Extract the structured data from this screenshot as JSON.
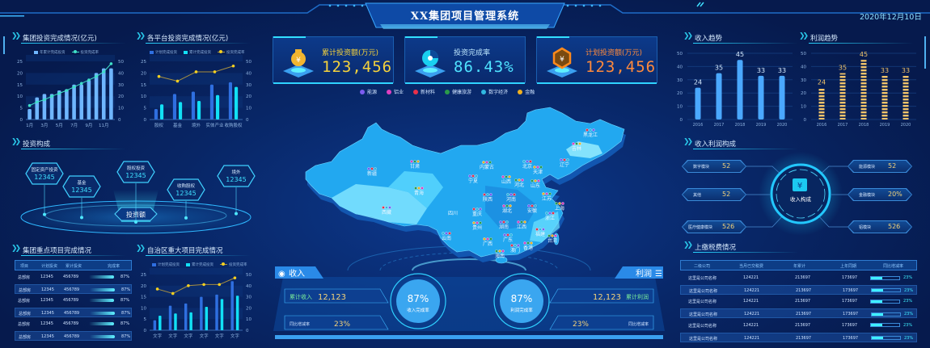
{
  "header": {
    "title": "XX集团项目管理系统",
    "date": "2020年12月10日"
  },
  "left": {
    "group_invest": {
      "title": "集团投资完成情况(亿元)",
      "legend": [
        "年累计完成投资",
        "投资完成率"
      ]
    },
    "platform_invest": {
      "title": "各平台投资完成情况(亿元)",
      "legend": [
        "计划完成投资",
        "累计完成投资",
        "投资完成率"
      ]
    },
    "composition": {
      "title": "投资构成",
      "center_label": "投资额",
      "nodes": [
        {
          "name": "固定资产投资",
          "value": "12345"
        },
        {
          "name": "基金",
          "value": "12345"
        },
        {
          "name": "股权投资",
          "value": "12345"
        },
        {
          "name": "收购股权",
          "value": "12345"
        },
        {
          "name": "境外",
          "value": "12345"
        }
      ]
    },
    "key_projects": {
      "title": "集团重点项目完成情况",
      "columns": [
        "项目",
        "计划投资",
        "累计投资",
        "完成率"
      ],
      "rows": [
        {
          "name": "总部房",
          "plan": "12345",
          "total": "456789",
          "rate": "87%",
          "progress": 0.87
        },
        {
          "name": "总部房",
          "plan": "12345",
          "total": "456789",
          "rate": "87%",
          "progress": 0.87
        },
        {
          "name": "总部房",
          "plan": "12345",
          "total": "456789",
          "rate": "87%",
          "progress": 0.87
        },
        {
          "name": "总部房",
          "plan": "12345",
          "total": "456789",
          "rate": "87%",
          "progress": 0.87
        },
        {
          "name": "总部房",
          "plan": "12345",
          "total": "456789",
          "rate": "87%",
          "progress": 0.87
        },
        {
          "name": "总部房",
          "plan": "12345",
          "total": "456789",
          "rate": "87%",
          "progress": 0.87
        }
      ]
    },
    "region_projects": {
      "title": "自治区重大项目完成情况",
      "legend": [
        "计划完成投资",
        "累计完成投资",
        "投资完成率"
      ]
    }
  },
  "center": {
    "kpis": [
      {
        "label": "累计投资额(万元)",
        "value": "123,456",
        "color": "#f5d23c",
        "icon": "money-bag-icon"
      },
      {
        "label": "投资完成率",
        "value": "86.43%",
        "color": "#4fe3ff",
        "icon": "pie-chart-icon"
      },
      {
        "label": "计划投资额(万元)",
        "value": "123,456",
        "color": "#ff8a3c",
        "icon": "yuan-hexagon-icon"
      }
    ],
    "categories": [
      {
        "label": "能源",
        "color": "#7b5cf0"
      },
      {
        "label": "铝业",
        "color": "#e040c0"
      },
      {
        "label": "新材料",
        "color": "#e8304a"
      },
      {
        "label": "健康旅游",
        "color": "#2a9a4a"
      },
      {
        "label": "数字经济",
        "color": "#30b8e0"
      },
      {
        "label": "金融",
        "color": "#f0b020"
      }
    ],
    "provinces": [
      "新疆",
      "甘肃",
      "西藏",
      "青海",
      "四川",
      "内蒙古",
      "宁夏",
      "山西",
      "陕西",
      "河北",
      "北京",
      "天津",
      "辽宁",
      "吉林",
      "黑龙江",
      "山东",
      "河南",
      "江苏",
      "安徽",
      "湖北",
      "重庆",
      "上海",
      "浙江",
      "贵州",
      "湖南",
      "江西",
      "福建",
      "台湾",
      "云南",
      "广西",
      "广东",
      "香港",
      "澳门",
      "海南"
    ],
    "income": {
      "title": "收入",
      "total_label": "累计收入",
      "total": "12,123",
      "yoy_label": "同比增减率",
      "yoy": "23%",
      "rate": "87%",
      "rate_label": "收入完成率"
    },
    "profit": {
      "title": "利润",
      "total_label": "累计利润",
      "total": "12,123",
      "yoy_label": "同比增减率",
      "yoy": "23%",
      "rate": "87%",
      "rate_label": "利润完成率"
    }
  },
  "right": {
    "income_trend": {
      "title": "收入趋势"
    },
    "profit_trend": {
      "title": "利润趋势"
    },
    "structure": {
      "title": "收入利润构成",
      "center_label": "收入构成",
      "items": [
        {
          "name": "数字模块",
          "value": "52"
        },
        {
          "name": "其他",
          "value": "52"
        },
        {
          "name": "医疗健康模块",
          "value": "526"
        },
        {
          "name": "能源模块",
          "value": "52"
        },
        {
          "name": "金融模块",
          "value": "20%"
        },
        {
          "name": "铝模块",
          "value": "526"
        }
      ]
    },
    "tax": {
      "title": "上缴税费情况",
      "columns": [
        "二级公司",
        "当月已交税费",
        "年累计",
        "上年同期",
        "同比增减率"
      ],
      "rows": [
        {
          "company": "这里是公司名称",
          "month": "124221",
          "year": "213697",
          "last": "173697",
          "rate": "23%",
          "progress": 0.23
        },
        {
          "company": "这里是公司名称",
          "month": "124221",
          "year": "213697",
          "last": "173697",
          "rate": "23%",
          "progress": 0.23
        },
        {
          "company": "这里是公司名称",
          "month": "124221",
          "year": "213697",
          "last": "173697",
          "rate": "23%",
          "progress": 0.23
        },
        {
          "company": "这里是公司名称",
          "month": "124221",
          "year": "213697",
          "last": "173697",
          "rate": "23%",
          "progress": 0.23
        },
        {
          "company": "这里是公司名称",
          "month": "124221",
          "year": "213697",
          "last": "173697",
          "rate": "23%",
          "progress": 0.23
        },
        {
          "company": "这里是公司名称",
          "month": "124221",
          "year": "213697",
          "last": "173697",
          "rate": "23%",
          "progress": 0.23
        }
      ]
    }
  },
  "chart_data": [
    {
      "id": "group_invest",
      "type": "bar+line",
      "categories": [
        "1月",
        "2月",
        "3月",
        "4月",
        "5月",
        "6月",
        "7月",
        "8月",
        "9月",
        "10月",
        "11月",
        "12月"
      ],
      "x_tick_labels": [
        "1月",
        "",
        "3月",
        "",
        "5月",
        "",
        "7月",
        "",
        "9月",
        "",
        "11月",
        ""
      ],
      "series": [
        {
          "name": "年累计完成投资",
          "type": "bar",
          "axis": "left",
          "color": "#6fb6ff",
          "values": [
            4.5,
            9.5,
            11,
            11,
            12.5,
            13,
            15,
            15,
            17,
            20,
            22,
            22
          ]
        },
        {
          "name": "投资完成率",
          "type": "line",
          "axis": "right",
          "color": "#3fe0c8",
          "values": [
            12,
            15,
            17,
            20,
            22.5,
            25,
            28,
            31,
            34,
            37,
            41,
            48
          ]
        }
      ],
      "ylim": [
        0,
        25
      ],
      "y2lim": [
        0,
        50
      ],
      "grid": true
    },
    {
      "id": "platform_invest",
      "type": "bar+line",
      "categories": [
        "股权",
        "基金",
        "境外",
        "实体产业",
        "收购股权"
      ],
      "x_tick_labels": [
        "股权",
        "基金",
        "境外",
        "实体产业",
        "收购股权"
      ],
      "series": [
        {
          "name": "计划完成投资",
          "type": "bar",
          "axis": "left",
          "color": "#2f6fe0",
          "values": [
            4.5,
            11,
            12,
            15,
            16
          ]
        },
        {
          "name": "累计完成投资",
          "type": "bar",
          "axis": "left",
          "color": "#12e0f5",
          "values": [
            6.5,
            7.5,
            8,
            10.5,
            14
          ]
        },
        {
          "name": "投资完成率",
          "type": "line",
          "axis": "right",
          "color": "#f5d020",
          "values": [
            37,
            33,
            41,
            41,
            46
          ]
        }
      ],
      "ylim": [
        0,
        25
      ],
      "y2lim": [
        0,
        50
      ],
      "grid": true
    },
    {
      "id": "region_projects",
      "type": "bar+line",
      "categories": [
        "文字",
        "文字",
        "文字",
        "文字",
        "文字",
        "文字"
      ],
      "x_tick_labels": [
        "文字",
        "文字",
        "文字",
        "文字",
        "文字",
        "文字"
      ],
      "series": [
        {
          "name": "计划完成投资",
          "type": "bar",
          "axis": "left",
          "color": "#2f6fe0",
          "values": [
            4.5,
            11,
            12,
            15,
            16,
            22
          ]
        },
        {
          "name": "累计完成投资",
          "type": "bar",
          "axis": "left",
          "color": "#12e0f5",
          "values": [
            6.5,
            7.5,
            8,
            10.5,
            14,
            15.5
          ]
        },
        {
          "name": "投资完成率",
          "type": "line",
          "axis": "right",
          "color": "#f5d020",
          "values": [
            37,
            33,
            40,
            41,
            41,
            47
          ]
        }
      ],
      "ylim": [
        0,
        25
      ],
      "y2lim": [
        0,
        50
      ],
      "grid": true
    },
    {
      "id": "income_trend",
      "type": "bar",
      "categories": [
        "2016",
        "2017",
        "2018",
        "2019",
        "2020"
      ],
      "values": [
        24,
        35,
        45,
        33,
        33
      ],
      "data_labels": true,
      "color": "#4aa8ff",
      "ylim": [
        0,
        50
      ],
      "grid": true
    },
    {
      "id": "profit_trend",
      "type": "bar",
      "categories": [
        "2016",
        "2017",
        "2018",
        "2019",
        "2020"
      ],
      "values": [
        24,
        35,
        45,
        33,
        33
      ],
      "data_labels": true,
      "color": "#f2c46a",
      "style": "striped",
      "ylim": [
        0,
        50
      ],
      "grid": true
    }
  ]
}
